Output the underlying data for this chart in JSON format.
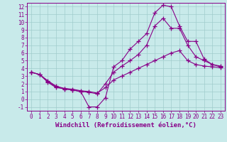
{
  "background_color": "#c8eaea",
  "grid_color": "#a0cccc",
  "line_color": "#880088",
  "marker": "+",
  "markersize": 4,
  "linewidth": 0.8,
  "xlabel": "Windchill (Refroidissement éolien,°C)",
  "xlabel_fontsize": 6.5,
  "tick_fontsize": 5.5,
  "xlim": [
    -0.5,
    23.5
  ],
  "ylim": [
    -1.5,
    12.5
  ],
  "yticks": [
    -1,
    0,
    1,
    2,
    3,
    4,
    5,
    6,
    7,
    8,
    9,
    10,
    11,
    12
  ],
  "xticks": [
    0,
    1,
    2,
    3,
    4,
    5,
    6,
    7,
    8,
    9,
    10,
    11,
    12,
    13,
    14,
    15,
    16,
    17,
    18,
    19,
    20,
    21,
    22,
    23
  ],
  "curve1_x": [
    0,
    1,
    2,
    3,
    4,
    5,
    6,
    7,
    8,
    9,
    10,
    11,
    12,
    13,
    14,
    15,
    16,
    17,
    18,
    19,
    20,
    21,
    22,
    23
  ],
  "curve1_y": [
    3.5,
    3.2,
    2.4,
    1.7,
    1.4,
    1.2,
    1.0,
    -1.0,
    -1.0,
    0.2,
    4.2,
    5.0,
    6.5,
    7.5,
    8.5,
    11.2,
    12.2,
    12.0,
    9.5,
    7.5,
    7.5,
    5.2,
    4.5,
    4.2
  ],
  "curve2_x": [
    0,
    1,
    2,
    3,
    4,
    5,
    6,
    7,
    8,
    9,
    10,
    11,
    12,
    13,
    14,
    15,
    16,
    17,
    18,
    19,
    20,
    21,
    22,
    23
  ],
  "curve2_y": [
    3.5,
    3.2,
    2.3,
    1.6,
    1.3,
    1.2,
    1.0,
    0.9,
    0.7,
    2.0,
    3.5,
    4.3,
    5.0,
    5.8,
    7.0,
    9.5,
    10.5,
    9.2,
    9.2,
    7.0,
    5.5,
    5.0,
    4.5,
    4.3
  ],
  "curve3_x": [
    0,
    1,
    2,
    3,
    4,
    5,
    6,
    7,
    8,
    9,
    10,
    11,
    12,
    13,
    14,
    15,
    16,
    17,
    18,
    19,
    20,
    21,
    22,
    23
  ],
  "curve3_y": [
    3.5,
    3.2,
    2.2,
    1.5,
    1.4,
    1.3,
    1.1,
    1.0,
    0.8,
    1.5,
    2.5,
    3.0,
    3.5,
    4.0,
    4.5,
    5.0,
    5.5,
    6.0,
    6.3,
    5.0,
    4.5,
    4.3,
    4.2,
    4.1
  ]
}
